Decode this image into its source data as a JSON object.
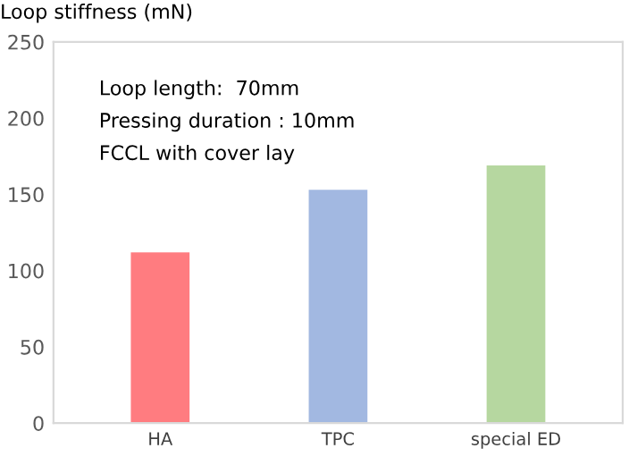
{
  "chart_data": {
    "type": "bar",
    "ylabel": "Loop stiffness (mN)",
    "categories": [
      "HA",
      "TPC",
      "special ED"
    ],
    "values": [
      112,
      153,
      169
    ],
    "colors": [
      "#ff7c80",
      "#a2b8e1",
      "#b6d7a0"
    ],
    "ylim": [
      0,
      250
    ],
    "yticks": [
      0,
      50,
      100,
      150,
      200,
      250
    ],
    "grid": false,
    "annotations": [
      "Loop length:  70mm",
      "Pressing duration : 10mm",
      "FCCL with cover lay"
    ]
  }
}
